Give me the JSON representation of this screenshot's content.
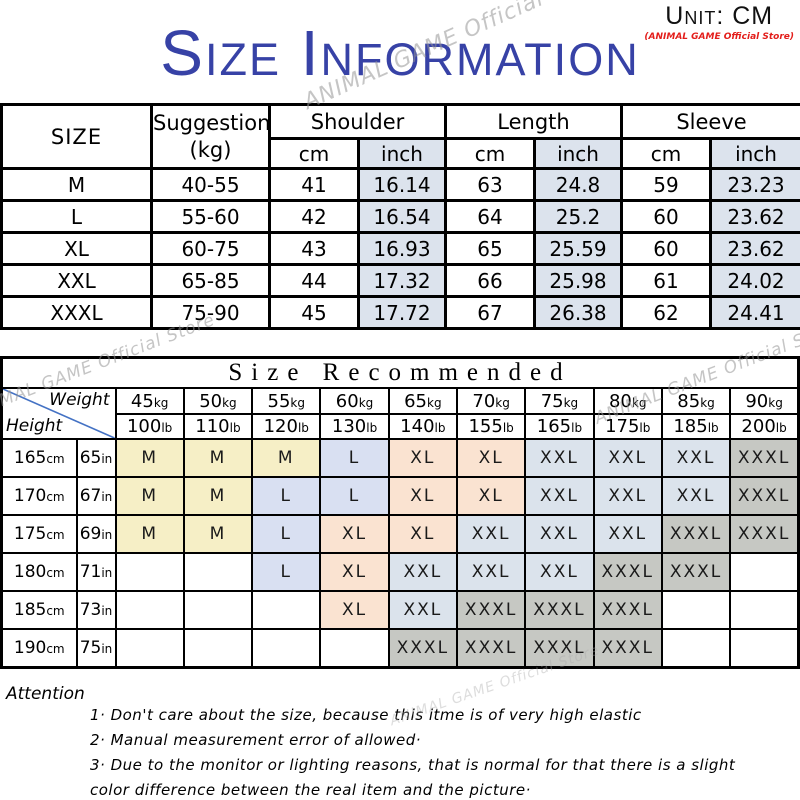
{
  "header": {
    "unit": "Unit: CM",
    "store": "(ANIMAL GAME Official Store)",
    "title": "Size Information",
    "watermark": "ANIMAL GAME Official Store"
  },
  "size_table": {
    "col_size": "SIZE",
    "col_suggestion_line1": "Suggestion",
    "col_suggestion_line2": "(kg)",
    "group_headers": [
      "Shoulder",
      "Length",
      "Sleeve"
    ],
    "unit_cm": "cm",
    "unit_inch": "inch",
    "rows": [
      {
        "size": "M",
        "suggestion": "40-55",
        "shoulder_cm": "41",
        "shoulder_inch": "16.14",
        "length_cm": "63",
        "length_inch": "24.8",
        "sleeve_cm": "59",
        "sleeve_inch": "23.23"
      },
      {
        "size": "L",
        "suggestion": "55-60",
        "shoulder_cm": "42",
        "shoulder_inch": "16.54",
        "length_cm": "64",
        "length_inch": "25.2",
        "sleeve_cm": "60",
        "sleeve_inch": "23.62"
      },
      {
        "size": "XL",
        "suggestion": "60-75",
        "shoulder_cm": "43",
        "shoulder_inch": "16.93",
        "length_cm": "65",
        "length_inch": "25.59",
        "sleeve_cm": "60",
        "sleeve_inch": "23.62"
      },
      {
        "size": "XXL",
        "suggestion": "65-85",
        "shoulder_cm": "44",
        "shoulder_inch": "17.32",
        "length_cm": "66",
        "length_inch": "25.98",
        "sleeve_cm": "61",
        "sleeve_inch": "24.02"
      },
      {
        "size": "XXXL",
        "suggestion": "75-90",
        "shoulder_cm": "45",
        "shoulder_inch": "17.72",
        "length_cm": "67",
        "length_inch": "26.38",
        "sleeve_cm": "62",
        "sleeve_inch": "24.41"
      }
    ]
  },
  "reco_table": {
    "title": "Size Recommended",
    "corner": {
      "weight": "Weight",
      "height": "Height"
    },
    "weights_kg": [
      "45kg",
      "50kg",
      "55kg",
      "60kg",
      "65kg",
      "70kg",
      "75kg",
      "80kg",
      "85kg",
      "90kg"
    ],
    "weights_lb": [
      "100lb",
      "110lb",
      "120lb",
      "130lb",
      "140lb",
      "155lb",
      "165lb",
      "175lb",
      "185lb",
      "200lb"
    ],
    "rows": [
      {
        "height": "165cm",
        "height_in": "65in",
        "sizes": [
          "M",
          "M",
          "M",
          "L",
          "XL",
          "XL",
          "XXL",
          "XXL",
          "XXL",
          "XXXL"
        ]
      },
      {
        "height": "170cm",
        "height_in": "67in",
        "sizes": [
          "M",
          "M",
          "L",
          "L",
          "XL",
          "XL",
          "XXL",
          "XXL",
          "XXL",
          "XXXL"
        ]
      },
      {
        "height": "175cm",
        "height_in": "69in",
        "sizes": [
          "M",
          "M",
          "L",
          "XL",
          "XL",
          "XXL",
          "XXL",
          "XXL",
          "XXXL",
          "XXXL"
        ]
      },
      {
        "height": "180cm",
        "height_in": "71in",
        "sizes": [
          "",
          "",
          "L",
          "XL",
          "XXL",
          "XXL",
          "XXL",
          "XXXL",
          "XXXL",
          ""
        ]
      },
      {
        "height": "185cm",
        "height_in": "73in",
        "sizes": [
          "",
          "",
          "",
          "XL",
          "XXL",
          "XXXL",
          "XXXL",
          "XXXL",
          "",
          ""
        ]
      },
      {
        "height": "190cm",
        "height_in": "75in",
        "sizes": [
          "",
          "",
          "",
          "",
          "XXXL",
          "XXXL",
          "XXXL",
          "XXXL",
          "",
          ""
        ]
      }
    ]
  },
  "attention": {
    "title": "Attention",
    "notes": [
      "1· Don't care about the size, because this itme is of very high elastic",
      "2· Manual measurement error of allowed·",
      "3·  Due to the monitor or lighting reasons, that is normal for that there is a slight",
      "color difference between the real item and the picture·"
    ]
  },
  "colors": {
    "title_blue": "#3742a6",
    "store_red": "#e31d1a",
    "shaded_inch": "#dce3ed",
    "size_m": "#f6efc6",
    "size_l": "#d9e0f2",
    "size_xl": "#fae3d1",
    "size_xxl": "#dbe3ec",
    "size_xxxl": "#c6c8c3",
    "diagonal_blue": "#4472c4"
  }
}
